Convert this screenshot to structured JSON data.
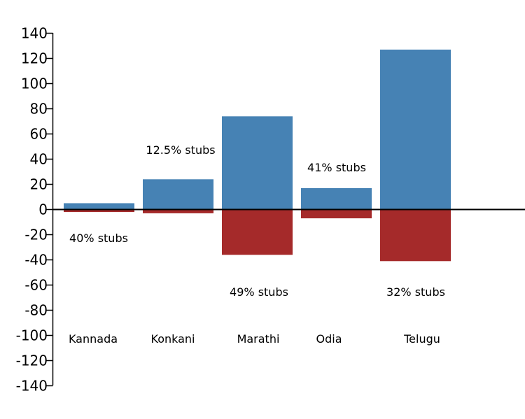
{
  "chart_data": {
    "type": "bar",
    "categories": [
      "Kannada",
      "Konkani",
      "Marathi",
      "Odia",
      "Telugu"
    ],
    "series": [
      {
        "values": [
          5,
          24,
          74,
          17,
          127
        ],
        "color": "#4682b4"
      },
      {
        "values": [
          -2,
          -3,
          -36,
          -7,
          -41
        ],
        "color": "#a52a2a"
      }
    ],
    "annotations": [
      "40% stubs",
      "12.5% stubs",
      "49% stubs",
      "41% stubs",
      "32% stubs"
    ],
    "ylim": [
      -140,
      140
    ],
    "yticks": [
      140,
      120,
      100,
      80,
      60,
      40,
      20,
      0,
      -20,
      -40,
      -60,
      -80,
      -100,
      -120,
      -140
    ],
    "grid": false
  }
}
